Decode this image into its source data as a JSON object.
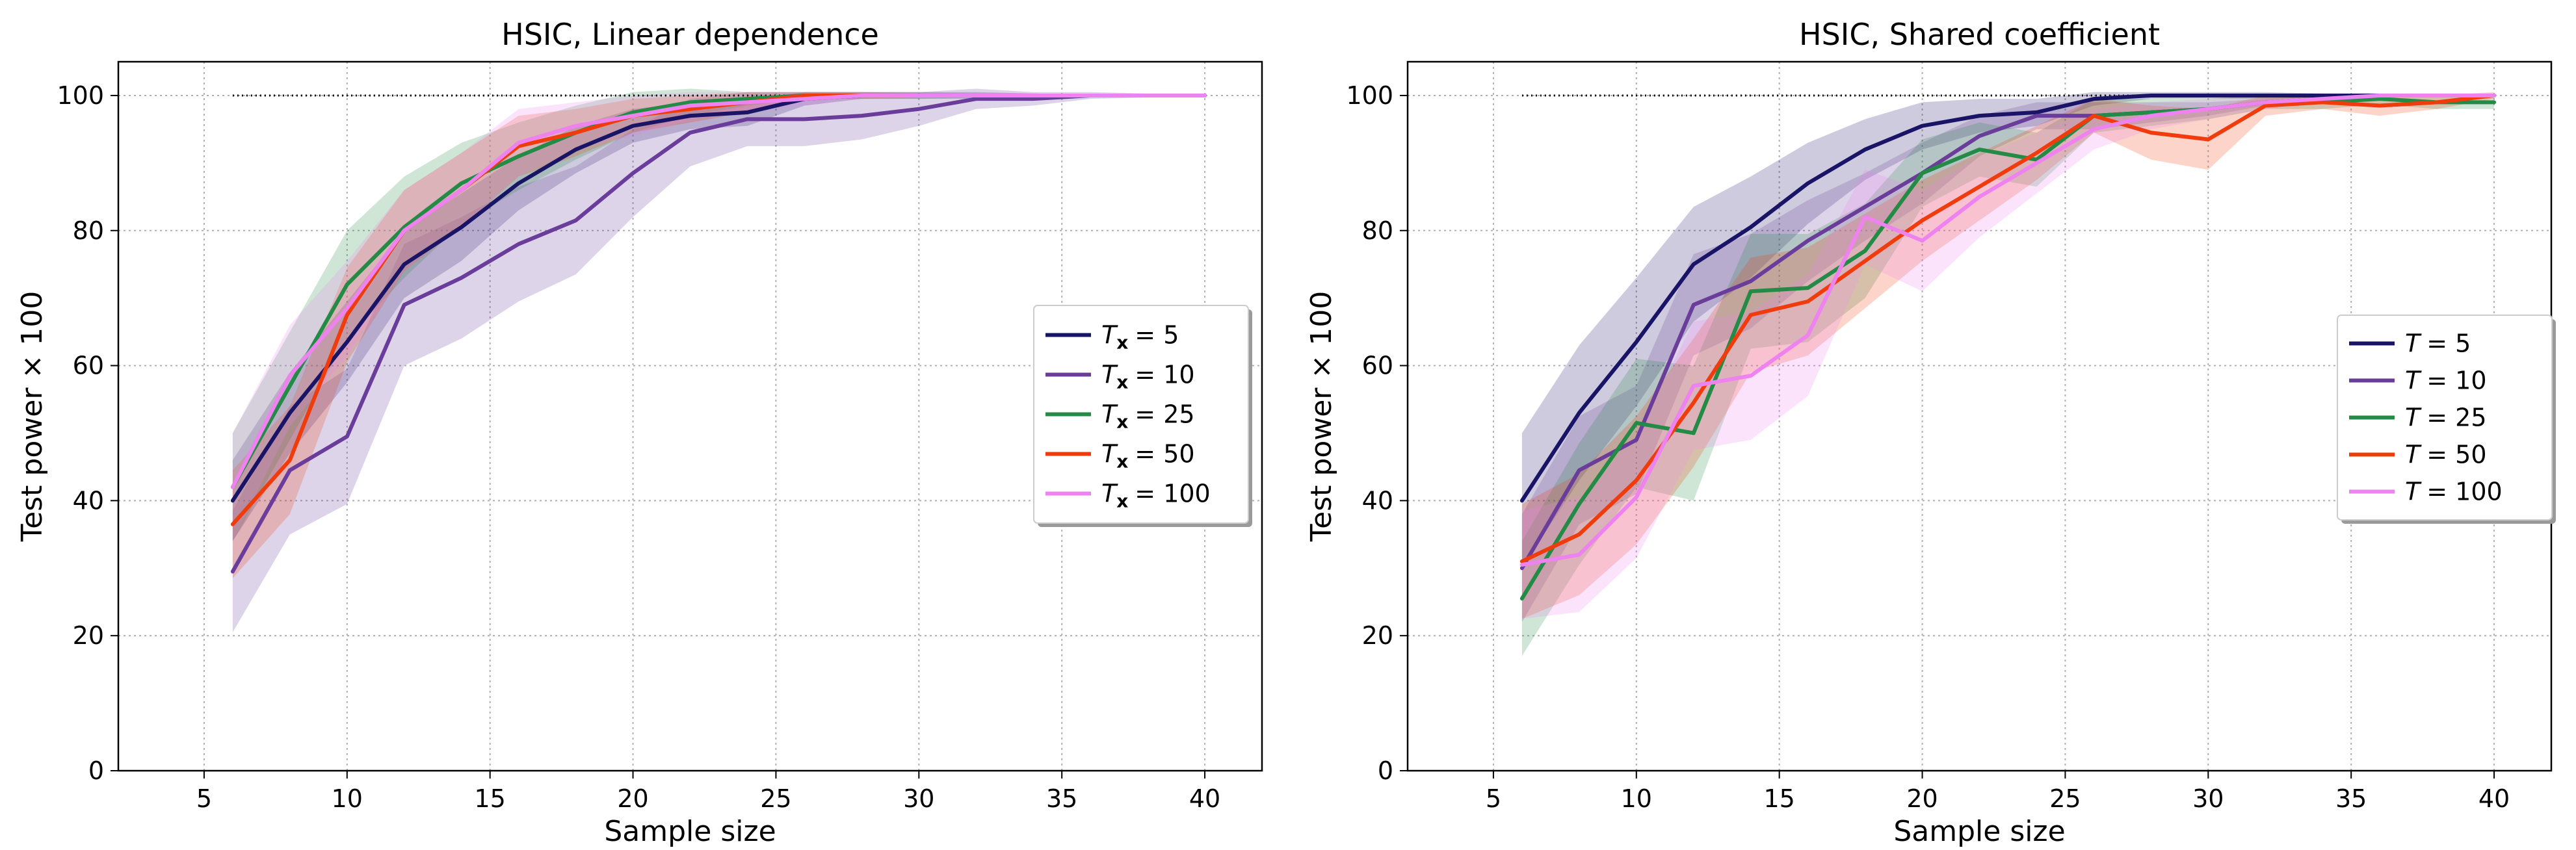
{
  "chart_data": [
    {
      "type": "line",
      "title": "HSIC, Linear dependence",
      "xlabel": "Sample size",
      "ylabel": "Test power × 100",
      "xlim": [
        2,
        42
      ],
      "ylim": [
        0,
        105
      ],
      "xticks": [
        "5",
        "10",
        "15",
        "20",
        "25",
        "30",
        "35",
        "40"
      ],
      "yticks": [
        "0",
        "20",
        "40",
        "60",
        "80",
        "100"
      ],
      "grid": true,
      "legend_position": "center-right",
      "legend_symbol": "T",
      "legend_subscript": "x",
      "reference_line": {
        "style": "dotted",
        "y": 100,
        "x": [
          6,
          40
        ]
      },
      "x": [
        6,
        8,
        10,
        12,
        14,
        16,
        18,
        20,
        22,
        24,
        26,
        28,
        30,
        32,
        34,
        36,
        38,
        40
      ],
      "series": [
        {
          "name": "5",
          "label_value": "= 5",
          "color": "#1a1466",
          "values": [
            40,
            53,
            63.5,
            75,
            80.5,
            87,
            92,
            95.5,
            97,
            97.5,
            99.5,
            100,
            100,
            100,
            100,
            100,
            100,
            100
          ],
          "band": [
            6,
            6,
            6,
            5,
            5,
            4,
            3.5,
            2.5,
            2,
            2,
            1,
            0.5,
            0.5,
            0.5,
            0.3,
            0.2,
            0.2,
            0.2
          ]
        },
        {
          "name": "10",
          "label_value": "= 10",
          "color": "#6a3d9a",
          "values": [
            29.5,
            44.5,
            49.5,
            69,
            73,
            78,
            81.5,
            88.5,
            94.5,
            96.5,
            96.5,
            97,
            98,
            99.5,
            99.5,
            100,
            100,
            100
          ],
          "band": [
            9,
            9.5,
            10,
            9,
            9,
            8.5,
            8,
            6.5,
            5,
            4,
            4,
            3.5,
            2.5,
            1.5,
            1,
            0.5,
            0.3,
            0.3
          ]
        },
        {
          "name": "25",
          "label_value": "= 25",
          "color": "#238b45",
          "values": [
            42,
            57,
            72,
            80.5,
            87,
            91,
            94.5,
            97.5,
            99,
            99.5,
            100,
            100,
            100,
            100,
            100,
            100,
            100,
            100
          ],
          "band": [
            8,
            8,
            8,
            7.5,
            6,
            5,
            4,
            3,
            2,
            1,
            0.5,
            0.5,
            0.5,
            0.3,
            0.3,
            0.2,
            0.2,
            0.2
          ]
        },
        {
          "name": "50",
          "label_value": "= 50",
          "color": "#f03c0c",
          "values": [
            36.5,
            46,
            67.5,
            80,
            86,
            92.5,
            94.5,
            97,
            98,
            99,
            100,
            100,
            100,
            100,
            100,
            100,
            100,
            100
          ],
          "band": [
            8,
            8,
            7,
            6,
            5.5,
            4.5,
            3.5,
            2.5,
            2,
            1.5,
            0.5,
            0.5,
            0.3,
            0.3,
            0.3,
            0.2,
            0.2,
            0.2
          ]
        },
        {
          "name": "100",
          "label_value": "= 100",
          "color": "#ee82ee",
          "values": [
            42,
            58.5,
            68.5,
            80,
            86,
            93,
            95.5,
            97,
            98.5,
            99,
            99.5,
            100,
            100,
            100,
            100,
            100,
            100,
            100
          ],
          "band": [
            8,
            7.5,
            7,
            6,
            5.5,
            5,
            3.5,
            3,
            2,
            1.5,
            1,
            0.5,
            0.5,
            0.3,
            0.3,
            0.2,
            0.2,
            0.2
          ]
        }
      ]
    },
    {
      "type": "line",
      "title": "HSIC, Shared coefficient",
      "xlabel": "Sample size",
      "ylabel": "Test power × 100",
      "xlim": [
        2,
        42
      ],
      "ylim": [
        0,
        105
      ],
      "xticks": [
        "5",
        "10",
        "15",
        "20",
        "25",
        "30",
        "35",
        "40"
      ],
      "yticks": [
        "0",
        "20",
        "40",
        "60",
        "80",
        "100"
      ],
      "grid": true,
      "legend_position": "center-right",
      "legend_symbol": "T",
      "legend_subscript": "",
      "reference_line": {
        "style": "dotted",
        "y": 100,
        "x": [
          6,
          40
        ]
      },
      "x": [
        6,
        8,
        10,
        12,
        14,
        16,
        18,
        20,
        22,
        24,
        26,
        28,
        30,
        32,
        34,
        36,
        38,
        40
      ],
      "series": [
        {
          "name": "5",
          "label_value": "= 5",
          "color": "#1a1466",
          "values": [
            40,
            53,
            63.5,
            75,
            80.5,
            87,
            92,
            95.5,
            97,
            97.5,
            99.5,
            100,
            100,
            100,
            100,
            100,
            100,
            100
          ],
          "band": [
            10,
            10,
            9.5,
            8.5,
            7.5,
            6,
            4.5,
            3.5,
            2.5,
            2,
            1,
            0.5,
            0.5,
            0.5,
            0.3,
            0.2,
            0.2,
            0.2
          ]
        },
        {
          "name": "10",
          "label_value": "= 10",
          "color": "#6a3d9a",
          "values": [
            30,
            44.5,
            49,
            69,
            72.5,
            78.5,
            83.5,
            88.5,
            94,
            97,
            97,
            97.5,
            98,
            99,
            99.5,
            100,
            100,
            100
          ],
          "band": [
            8,
            8,
            8,
            7.5,
            7,
            6,
            5,
            4.5,
            3,
            2,
            2,
            1.5,
            1,
            0.5,
            0.5,
            0.3,
            0.3,
            0.3
          ]
        },
        {
          "name": "25",
          "label_value": "= 25",
          "color": "#238b45",
          "values": [
            25.5,
            39.5,
            51.5,
            50,
            71,
            71.5,
            77,
            88.5,
            92,
            90.5,
            97,
            97.5,
            98,
            99,
            99,
            99.5,
            99,
            99
          ],
          "band": [
            8.5,
            9,
            9.5,
            10,
            8.5,
            8,
            7,
            5,
            4,
            4,
            2.5,
            2,
            1.5,
            1,
            1,
            0.8,
            1,
            1
          ]
        },
        {
          "name": "50",
          "label_value": "= 50",
          "color": "#f03c0c",
          "values": [
            31,
            35,
            43,
            54.5,
            67.5,
            69.5,
            75.5,
            81.5,
            86.5,
            91.5,
            97,
            94.5,
            93.5,
            98.5,
            99,
            98.5,
            99,
            100
          ],
          "band": [
            8.5,
            9,
            9.5,
            9.5,
            8.5,
            8,
            7,
            6,
            5,
            4,
            2.5,
            4,
            4.5,
            1.5,
            1,
            1.5,
            1,
            0.5
          ]
        },
        {
          "name": "100",
          "label_value": "= 100",
          "color": "#ee82ee",
          "values": [
            30.5,
            32,
            40.5,
            57,
            58.5,
            64.5,
            82,
            78.5,
            85,
            90,
            95,
            97,
            98,
            99,
            99.5,
            100,
            100,
            100
          ],
          "band": [
            8,
            8.5,
            9,
            9.5,
            9.5,
            9,
            7,
            7.5,
            6,
            4.5,
            3,
            2,
            1.5,
            1,
            0.5,
            0.3,
            0.3,
            0.3
          ]
        }
      ]
    }
  ]
}
